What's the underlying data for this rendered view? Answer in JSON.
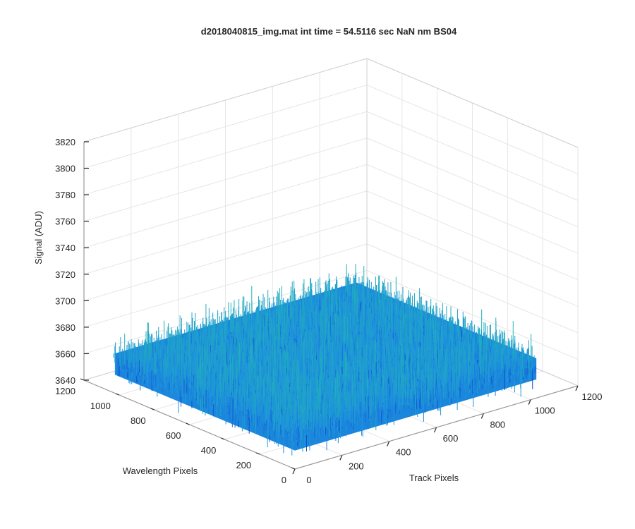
{
  "chart_data": {
    "type": "surface",
    "title": "d2018040815_img.mat int time = 54.5116 sec  NaN nm BS04",
    "xlabel": "Track Pixels",
    "ylabel": "Wavelength Pixels",
    "zlabel": "Signal (ADU)",
    "xlim": [
      0,
      1200
    ],
    "ylim": [
      0,
      1200
    ],
    "zlim": [
      3640,
      3820
    ],
    "xticks": [
      0,
      200,
      400,
      600,
      800,
      1000,
      1200
    ],
    "yticks": [
      0,
      200,
      400,
      600,
      800,
      1000,
      1200
    ],
    "zticks": [
      3640,
      3660,
      3680,
      3700,
      3720,
      3740,
      3760,
      3780,
      3800,
      3820
    ],
    "data_extent": {
      "x": [
        0,
        1024
      ],
      "y": [
        0,
        1024
      ]
    },
    "signal_mean": 3670,
    "signal_noise_std": 8,
    "signal_range": [
      3632,
      3735
    ],
    "grid": true,
    "colormap": "parula",
    "colors": {
      "low": "#0b3fd1",
      "mid": "#1e90e0",
      "high": "#22b8b0"
    }
  }
}
